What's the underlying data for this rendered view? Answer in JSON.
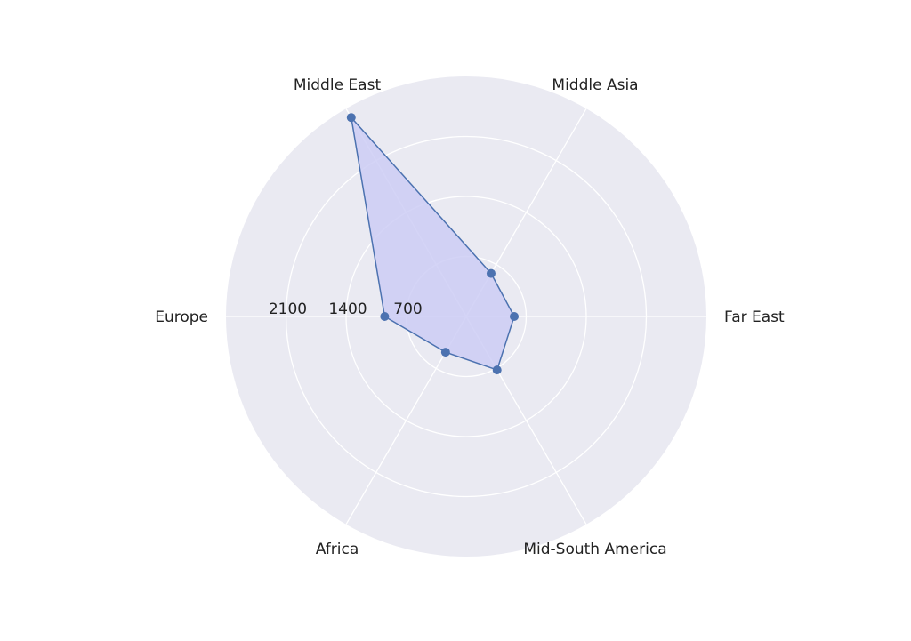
{
  "chart_data": {
    "type": "radar",
    "title": "",
    "categories": [
      "Far East",
      "Middle Asia",
      "Middle East",
      "Europe",
      "Africa",
      "Mid-South America"
    ],
    "series": [
      {
        "values": [
          560,
          580,
          2680,
          950,
          480,
          720
        ],
        "color": "#4c72b0",
        "fill": "#ccccf4"
      }
    ],
    "radial_ticks": [
      "700",
      "1400",
      "2100"
    ],
    "radial_tick_values": [
      700,
      1400,
      2100
    ],
    "rmax": 2800,
    "grid": true,
    "background": "#eaeaf2",
    "grid_color": "#ffffff"
  }
}
